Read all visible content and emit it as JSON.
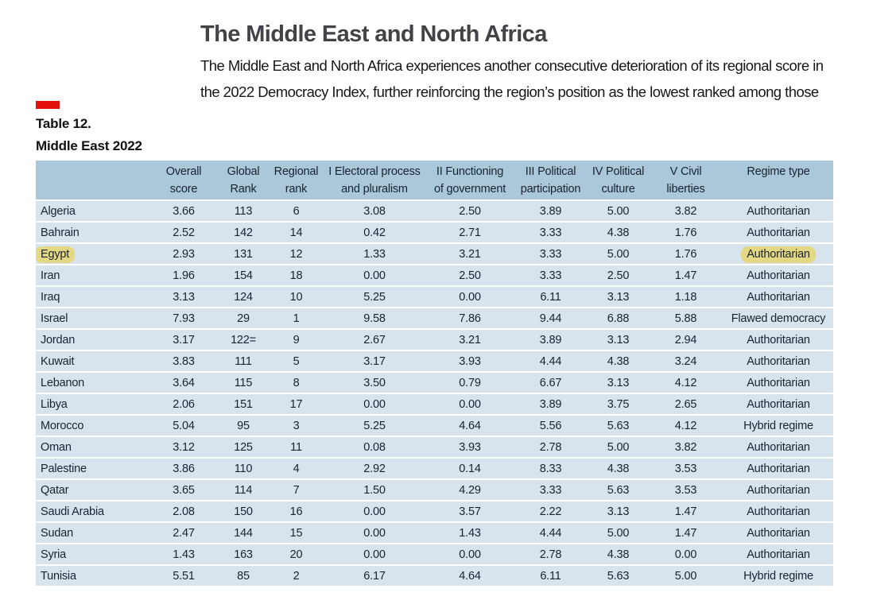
{
  "page": {
    "title": "The Middle East and North Africa",
    "intro": "The Middle East and North Africa experiences another consecutive deterioration of its regional score in the 2022 Democracy Index, further reinforcing the region’s position as the lowest ranked among those"
  },
  "colors": {
    "section_marker_red": "#e3120b",
    "table_header_blue": "#aac8da",
    "table_row_blue": "#d7e4ee",
    "annotation_highlight_yellow": "#e5d885"
  },
  "table": {
    "label": "Table 12.",
    "subtitle": "Middle East 2022",
    "columns": [
      "",
      "Overall\nscore",
      "Global\nRank",
      "Regional\nrank",
      "I Electoral process\nand pluralism",
      "II Functioning\nof government",
      "III Political\nparticipation",
      "IV Political\nculture",
      "V Civil\nliberties",
      "Regime type"
    ],
    "rows": [
      {
        "country": "Algeria",
        "cells": [
          "3.66",
          "113",
          "6",
          "3.08",
          "2.50",
          "3.89",
          "5.00",
          "3.82"
        ],
        "regime": "Authoritarian",
        "annotated": false
      },
      {
        "country": "Bahrain",
        "cells": [
          "2.52",
          "142",
          "14",
          "0.42",
          "2.71",
          "3.33",
          "4.38",
          "1.76"
        ],
        "regime": "Authoritarian",
        "annotated": false
      },
      {
        "country": "Egypt",
        "cells": [
          "2.93",
          "131",
          "12",
          "1.33",
          "3.21",
          "3.33",
          "5.00",
          "1.76"
        ],
        "regime": "Authoritarian",
        "annotated": true
      },
      {
        "country": "Iran",
        "cells": [
          "1.96",
          "154",
          "18",
          "0.00",
          "2.50",
          "3.33",
          "2.50",
          "1.47"
        ],
        "regime": "Authoritarian",
        "annotated": false
      },
      {
        "country": "Iraq",
        "cells": [
          "3.13",
          "124",
          "10",
          "5.25",
          "0.00",
          "6.11",
          "3.13",
          "1.18"
        ],
        "regime": "Authoritarian",
        "annotated": false
      },
      {
        "country": "Israel",
        "cells": [
          "7.93",
          "29",
          "1",
          "9.58",
          "7.86",
          "9.44",
          "6.88",
          "5.88"
        ],
        "regime": "Flawed democracy",
        "annotated": false
      },
      {
        "country": "Jordan",
        "cells": [
          "3.17",
          "122=",
          "9",
          "2.67",
          "3.21",
          "3.89",
          "3.13",
          "2.94"
        ],
        "regime": "Authoritarian",
        "annotated": false
      },
      {
        "country": "Kuwait",
        "cells": [
          "3.83",
          "111",
          "5",
          "3.17",
          "3.93",
          "4.44",
          "4.38",
          "3.24"
        ],
        "regime": "Authoritarian",
        "annotated": false
      },
      {
        "country": "Lebanon",
        "cells": [
          "3.64",
          "115",
          "8",
          "3.50",
          "0.79",
          "6.67",
          "3.13",
          "4.12"
        ],
        "regime": "Authoritarian",
        "annotated": false
      },
      {
        "country": "Libya",
        "cells": [
          "2.06",
          "151",
          "17",
          "0.00",
          "0.00",
          "3.89",
          "3.75",
          "2.65"
        ],
        "regime": "Authoritarian",
        "annotated": false
      },
      {
        "country": "Morocco",
        "cells": [
          "5.04",
          "95",
          "3",
          "5.25",
          "4.64",
          "5.56",
          "5.63",
          "4.12"
        ],
        "regime": "Hybrid regime",
        "annotated": false
      },
      {
        "country": "Oman",
        "cells": [
          "3.12",
          "125",
          "11",
          "0.08",
          "3.93",
          "2.78",
          "5.00",
          "3.82"
        ],
        "regime": "Authoritarian",
        "annotated": false
      },
      {
        "country": "Palestine",
        "cells": [
          "3.86",
          "110",
          "4",
          "2.92",
          "0.14",
          "8.33",
          "4.38",
          "3.53"
        ],
        "regime": "Authoritarian",
        "annotated": false
      },
      {
        "country": "Qatar",
        "cells": [
          "3.65",
          "114",
          "7",
          "1.50",
          "4.29",
          "3.33",
          "5.63",
          "3.53"
        ],
        "regime": "Authoritarian",
        "annotated": false
      },
      {
        "country": "Saudi Arabia",
        "cells": [
          "2.08",
          "150",
          "16",
          "0.00",
          "3.57",
          "2.22",
          "3.13",
          "1.47"
        ],
        "regime": "Authoritarian",
        "annotated": false
      },
      {
        "country": "Sudan",
        "cells": [
          "2.47",
          "144",
          "15",
          "0.00",
          "1.43",
          "4.44",
          "5.00",
          "1.47"
        ],
        "regime": "Authoritarian",
        "annotated": false
      },
      {
        "country": "Syria",
        "cells": [
          "1.43",
          "163",
          "20",
          "0.00",
          "0.00",
          "2.78",
          "4.38",
          "0.00"
        ],
        "regime": "Authoritarian",
        "annotated": false
      },
      {
        "country": "Tunisia",
        "cells": [
          "5.51",
          "85",
          "2",
          "6.17",
          "4.64",
          "6.11",
          "5.63",
          "5.00"
        ],
        "regime": "Hybrid regime",
        "annotated": false
      }
    ]
  }
}
